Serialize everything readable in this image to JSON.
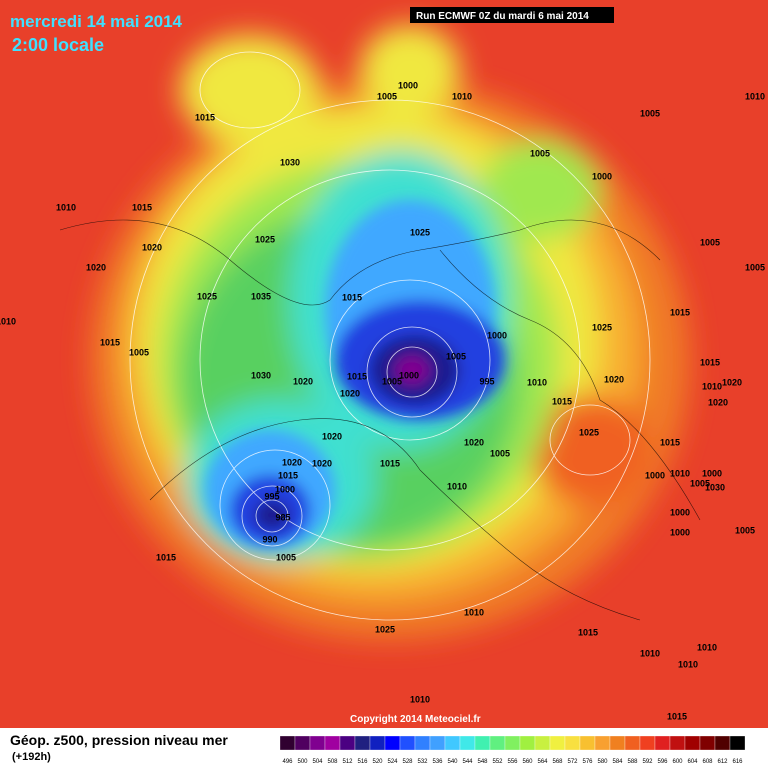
{
  "header": {
    "title": "mercredi 14 mai 2014",
    "subtitle": "2:00 locale",
    "run": "Run ECMWF 0Z du mardi 6 mai 2014"
  },
  "footer": {
    "field": "Géop. z500, pression niveau mer",
    "lead": "(+192h)",
    "copyright": "Copyright 2014 Meteociel.fr"
  },
  "legend": {
    "values": [
      496,
      500,
      504,
      508,
      512,
      516,
      520,
      524,
      528,
      532,
      536,
      540,
      544,
      548,
      552,
      556,
      560,
      564,
      568,
      572,
      576,
      580,
      584,
      588,
      592,
      596,
      600,
      604,
      608,
      612,
      616
    ],
    "colors": [
      "#300030",
      "#500060",
      "#800090",
      "#a000a0",
      "#4b0082",
      "#202080",
      "#1020c0",
      "#0000ff",
      "#2050ff",
      "#3080ff",
      "#40a0ff",
      "#40c8ff",
      "#40e8e8",
      "#40f0b0",
      "#60f080",
      "#80f060",
      "#a0f040",
      "#c8f040",
      "#f0f040",
      "#f8e040",
      "#f8c030",
      "#f8a030",
      "#f08020",
      "#f06020",
      "#f04020",
      "#e02020",
      "#c01010",
      "#a00000",
      "#800000",
      "#500000",
      "#000000"
    ]
  },
  "isobar_labels": [
    1015,
    1030,
    1000,
    1005,
    1010,
    1005,
    1010,
    1005,
    1000,
    1010,
    1015,
    1020,
    1025,
    1025,
    1005,
    1005,
    1020,
    1025,
    1035,
    1015,
    1015,
    1025,
    1010,
    1015,
    1005,
    1000,
    1005,
    995,
    1000,
    1005,
    1015,
    1030,
    1020,
    1020,
    1010,
    1020,
    1015,
    1010,
    1020,
    1015,
    1020,
    1025,
    1020,
    1020,
    1015,
    1005,
    1015,
    1020,
    1020,
    1015,
    1000,
    1010,
    1000,
    1005,
    1000,
    995,
    1010,
    1030,
    985,
    1000,
    1005,
    990,
    1000,
    1015,
    1005,
    1010,
    1025,
    1015,
    1010,
    1010,
    1010,
    1010,
    1015
  ]
}
